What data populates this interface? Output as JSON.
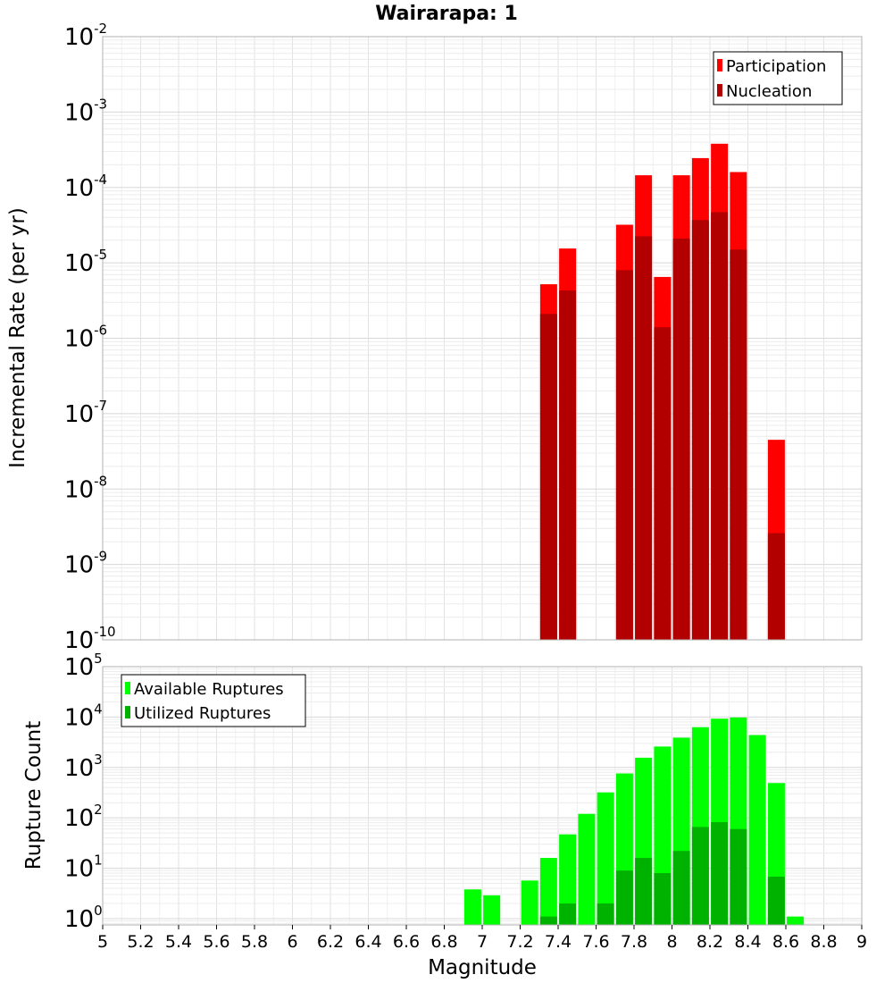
{
  "chart_data": [
    {
      "type": "bar",
      "title": "Wairarapa: 1",
      "xlabel": "Magnitude",
      "ylabel": "Incremental Rate (per yr)",
      "xlim": [
        5,
        9
      ],
      "ylim": [
        1e-10,
        0.01
      ],
      "yscale": "log",
      "grid": true,
      "legend_position": "top-right",
      "x": [
        7.35,
        7.45,
        7.75,
        7.85,
        7.95,
        8.05,
        8.15,
        8.25,
        8.35,
        8.55
      ],
      "series": [
        {
          "name": "Participation",
          "color": "#ff0000",
          "values": [
            5.2e-06,
            1.55e-05,
            3.2e-05,
            0.000145,
            6.5e-06,
            0.000145,
            0.000245,
            0.00038,
            0.00016,
            4.5e-08
          ]
        },
        {
          "name": "Nucleation",
          "color": "#b20000",
          "values": [
            2.1e-06,
            4.3e-06,
            8e-06,
            2.25e-05,
            1.4e-06,
            2.1e-05,
            3.7e-05,
            4.7e-05,
            1.5e-05,
            2.6e-09
          ]
        }
      ]
    },
    {
      "type": "bar",
      "xlabel": "Magnitude",
      "ylabel": "Rupture Count",
      "xlim": [
        5,
        9
      ],
      "ylim": [
        0.75,
        100000
      ],
      "yscale": "log",
      "grid": true,
      "legend_position": "top-left",
      "x": [
        6.95,
        7.05,
        7.25,
        7.35,
        7.45,
        7.55,
        7.65,
        7.75,
        7.85,
        7.95,
        8.05,
        8.15,
        8.25,
        8.35,
        8.45,
        8.55,
        8.65
      ],
      "series": [
        {
          "name": "Available Ruptures",
          "color": "#00ff00",
          "values": [
            3.8,
            2.9,
            5.7,
            16,
            47,
            120,
            320,
            760,
            1560,
            2600,
            3900,
            6300,
            9300,
            9800,
            4400,
            490,
            1.1
          ]
        },
        {
          "name": "Utilized Ruptures",
          "color": "#00b200",
          "values": [
            0,
            0,
            0,
            1.1,
            2.0,
            0,
            2.0,
            9.0,
            16,
            8.0,
            22,
            66,
            82,
            60,
            0,
            6.8,
            0
          ]
        }
      ]
    }
  ],
  "x_ticks": [
    "5",
    "5.2",
    "5.4",
    "5.6",
    "5.8",
    "6",
    "6.2",
    "6.4",
    "6.6",
    "6.8",
    "7",
    "7.2",
    "7.4",
    "7.6",
    "7.8",
    "8",
    "8.2",
    "8.4",
    "8.6",
    "8.8",
    "9"
  ],
  "top_y_ticks": [
    {
      "base": "10",
      "exp": "-10"
    },
    {
      "base": "10",
      "exp": "-9"
    },
    {
      "base": "10",
      "exp": "-8"
    },
    {
      "base": "10",
      "exp": "-7"
    },
    {
      "base": "10",
      "exp": "-6"
    },
    {
      "base": "10",
      "exp": "-5"
    },
    {
      "base": "10",
      "exp": "-4"
    },
    {
      "base": "10",
      "exp": "-3"
    },
    {
      "base": "10",
      "exp": "-2"
    }
  ],
  "bottom_y_ticks": [
    {
      "base": "10",
      "exp": "0"
    },
    {
      "base": "10",
      "exp": "1"
    },
    {
      "base": "10",
      "exp": "2"
    },
    {
      "base": "10",
      "exp": "3"
    },
    {
      "base": "10",
      "exp": "4"
    },
    {
      "base": "10",
      "exp": "5"
    }
  ]
}
